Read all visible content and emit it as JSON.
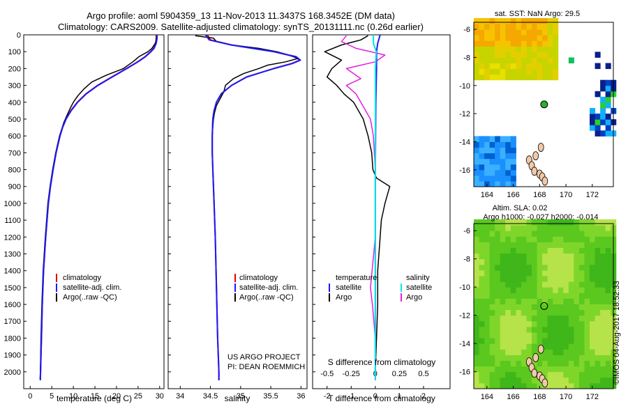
{
  "header": {
    "line1": "Argo profile: aoml 5904359_13 11-Nov-2013 11.3437S 168.3452E (DM data)",
    "line2": "Climatology: CARS2009. Satellite-adjusted climatology: synTS_20131111.nc (0.26d earlier)"
  },
  "colors": {
    "climatology": "#e00000",
    "satellite": "#1a1aff",
    "argo": "#000000",
    "sat_salinity": "#00e5e5",
    "argo_salinity": "#e020e0"
  },
  "chart_data": [
    {
      "type": "line",
      "id": "temperature",
      "xlabel": "temperature (deg C)",
      "ylim": [
        2100,
        0
      ],
      "xlim": [
        -1.5,
        31
      ],
      "xticks": [
        0,
        5,
        10,
        15,
        20,
        25,
        30
      ],
      "yticks": [
        0,
        100,
        200,
        300,
        400,
        500,
        600,
        700,
        800,
        900,
        1000,
        1100,
        1200,
        1300,
        1400,
        1500,
        1600,
        1700,
        1800,
        1900,
        2000
      ],
      "legend": [
        "climatology",
        "satellite-adj. clim.",
        "Argo(..raw -QC)"
      ],
      "series": [
        {
          "name": "climatology",
          "depth": [
            0,
            20,
            50,
            80,
            100,
            130,
            160,
            200,
            250,
            300,
            350,
            400,
            450,
            500,
            550,
            600,
            700,
            800,
            900,
            1000,
            1200,
            1400,
            1600,
            1800,
            2000,
            2050
          ],
          "values": [
            29.2,
            29.2,
            29.1,
            28.6,
            27.9,
            26.6,
            24.9,
            22.3,
            18.9,
            15.6,
            12.9,
            10.9,
            9.4,
            8.3,
            7.5,
            6.9,
            6.0,
            5.3,
            4.7,
            4.2,
            3.6,
            3.1,
            2.8,
            2.6,
            2.4,
            2.35
          ]
        },
        {
          "name": "satellite-adj. clim.",
          "depth": [
            0,
            20,
            50,
            80,
            100,
            130,
            160,
            200,
            250,
            300,
            350,
            400,
            450,
            500,
            550,
            600,
            700,
            800,
            900,
            1000,
            1200,
            1400,
            1600,
            1800,
            2000,
            2050
          ],
          "values": [
            29.4,
            29.4,
            29.2,
            28.7,
            28.0,
            26.7,
            25.0,
            22.4,
            19.0,
            15.7,
            13.0,
            11.0,
            9.5,
            8.3,
            7.5,
            6.9,
            6.0,
            5.3,
            4.7,
            4.2,
            3.6,
            3.1,
            2.8,
            2.6,
            2.4,
            2.35
          ]
        },
        {
          "name": "Argo(..raw -QC)",
          "depth": [
            5,
            20,
            50,
            80,
            100,
            130,
            160,
            200,
            240,
            280,
            320,
            360,
            400,
            440,
            480,
            520,
            560,
            600,
            700,
            800,
            900,
            1000,
            1200,
            1400,
            1600,
            1800,
            2000,
            2040
          ],
          "values": [
            29.3,
            29.3,
            29.0,
            28.2,
            27.3,
            25.2,
            23.8,
            21.6,
            17.6,
            14.3,
            12.5,
            11.1,
            10.0,
            9.2,
            8.5,
            7.8,
            7.3,
            6.8,
            5.9,
            5.2,
            4.6,
            4.1,
            3.5,
            3.0,
            2.7,
            2.5,
            2.35,
            2.3
          ]
        }
      ]
    },
    {
      "type": "line",
      "id": "salinity",
      "xlabel": "salinity",
      "ylim": [
        2100,
        0
      ],
      "xlim": [
        33.8,
        36.1
      ],
      "xticks": [
        34,
        34.5,
        35,
        35.5,
        36
      ],
      "legend": [
        "climatology",
        "satellite-adj. clim.",
        "Argo(..raw -QC)"
      ],
      "annotation": [
        "US ARGO PROJECT",
        "PI: DEAN ROEMMICH"
      ],
      "series": [
        {
          "name": "climatology",
          "depth": [
            0,
            30,
            60,
            100,
            130,
            150,
            170,
            200,
            250,
            300,
            350,
            400,
            450,
            500,
            600,
            700,
            800,
            1000,
            1200,
            1500,
            1800,
            2000,
            2050
          ],
          "values": [
            34.45,
            34.5,
            34.85,
            35.55,
            35.9,
            35.98,
            35.85,
            35.55,
            35.1,
            34.85,
            34.68,
            34.6,
            34.56,
            34.54,
            34.53,
            34.53,
            34.54,
            34.56,
            34.58,
            34.6,
            34.62,
            34.64,
            34.64
          ]
        },
        {
          "name": "satellite-adj. clim.",
          "depth": [
            0,
            30,
            60,
            100,
            130,
            150,
            170,
            200,
            250,
            300,
            350,
            400,
            450,
            500,
            600,
            700,
            800,
            1000,
            1200,
            1500,
            1800,
            2000,
            2050
          ],
          "values": [
            34.42,
            34.48,
            34.84,
            35.55,
            35.92,
            35.99,
            35.86,
            35.55,
            35.1,
            34.85,
            34.68,
            34.6,
            34.56,
            34.54,
            34.53,
            34.53,
            34.54,
            34.56,
            34.58,
            34.6,
            34.62,
            34.64,
            34.64
          ]
        },
        {
          "name": "Argo(..raw -QC)",
          "depth": [
            5,
            20,
            40,
            60,
            80,
            100,
            120,
            140,
            160,
            180,
            200,
            230,
            260,
            300,
            340,
            380,
            420,
            460,
            500,
            550,
            600,
            700,
            800,
            1000,
            1200,
            1500,
            1800,
            2000,
            2040
          ],
          "values": [
            34.25,
            34.55,
            34.6,
            34.85,
            35.3,
            35.6,
            35.8,
            35.95,
            35.75,
            35.45,
            35.3,
            35.05,
            34.88,
            34.75,
            34.72,
            34.66,
            34.6,
            34.57,
            34.55,
            34.54,
            34.53,
            34.53,
            34.54,
            34.56,
            34.58,
            34.6,
            34.62,
            34.64,
            34.64
          ]
        }
      ]
    },
    {
      "type": "line",
      "id": "difference",
      "xlabel": "T difference from climatology",
      "xlabel_top": "S difference from climatology",
      "ylim": [
        2100,
        0
      ],
      "xlim": [
        -2.6,
        3.1
      ],
      "xticks": [
        -2,
        -1,
        0,
        1,
        2
      ],
      "xticks_top": [
        -0.5,
        -0.25,
        0,
        0.25,
        0.5
      ],
      "legend_temperature": {
        "title": "temperature",
        "items": [
          "satellite",
          "Argo"
        ]
      },
      "legend_salinity": {
        "title": "salinity",
        "items": [
          "satellite",
          "Argo"
        ]
      },
      "series": [
        {
          "name": "T satellite",
          "depth": [
            0,
            50,
            100,
            200,
            400,
            800,
            1200,
            1600,
            2050
          ],
          "values": [
            0.2,
            0.1,
            0.05,
            0.05,
            0.02,
            0.0,
            0.0,
            0.0,
            0.0
          ]
        },
        {
          "name": "T Argo",
          "depth": [
            5,
            30,
            60,
            100,
            150,
            200,
            250,
            300,
            350,
            400,
            450,
            500,
            550,
            600,
            700,
            800,
            850,
            900,
            1000,
            1100,
            1200,
            1400,
            1600,
            1800,
            2000,
            2040
          ],
          "values": [
            -0.3,
            -0.6,
            -1.4,
            -2.1,
            -1.4,
            -1.8,
            -2.0,
            -1.6,
            -1.3,
            -0.9,
            -0.7,
            -0.5,
            -0.4,
            -0.3,
            -0.15,
            -0.1,
            0.05,
            0.6,
            0.4,
            0.25,
            0.2,
            0.1,
            0.1,
            0.05,
            0.0,
            0.0
          ]
        },
        {
          "name": "S satellite",
          "depth": [
            0,
            50,
            100,
            200,
            400,
            800,
            1200,
            1600,
            2050
          ],
          "values": [
            -0.02,
            -0.02,
            0.01,
            0.0,
            0.0,
            0.0,
            0.0,
            0.0,
            0.0
          ]
        },
        {
          "name": "S Argo",
          "depth": [
            5,
            40,
            80,
            120,
            160,
            200,
            260,
            300,
            350,
            400,
            450,
            500,
            600,
            800,
            1000,
            1200,
            1500,
            1600,
            1800,
            2000,
            2040
          ],
          "values": [
            -0.3,
            -0.35,
            -0.2,
            0.1,
            0.0,
            -0.3,
            -0.15,
            -0.3,
            -0.2,
            -0.15,
            -0.1,
            -0.05,
            -0.02,
            0.0,
            0.0,
            0.0,
            -0.05,
            -0.03,
            0.0,
            0.0,
            0.0
          ]
        }
      ]
    },
    {
      "type": "heatmap",
      "id": "sst_map",
      "title": "sat. SST: NaN Argo: 29.5",
      "xlim": [
        163,
        173.6
      ],
      "ylim": [
        -17.2,
        -5.5
      ],
      "xticks": [
        164,
        166,
        168,
        170,
        172
      ],
      "yticks": [
        -6,
        -8,
        -10,
        -12,
        -14,
        -16
      ]
    },
    {
      "type": "heatmap",
      "id": "sla_map",
      "title_line1": "Altim. SLA: 0.02",
      "title_line2": "Argo h1000: -0.027 h2000: -0.014",
      "xlim": [
        163,
        173.6
      ],
      "ylim": [
        -17.2,
        -5.5
      ],
      "xticks": [
        164,
        166,
        168,
        170,
        172
      ],
      "yticks": [
        -6,
        -8,
        -10,
        -12,
        -14,
        -16
      ]
    }
  ],
  "timestamp": "©IMOS 04-Aug-2017 18:52:33"
}
